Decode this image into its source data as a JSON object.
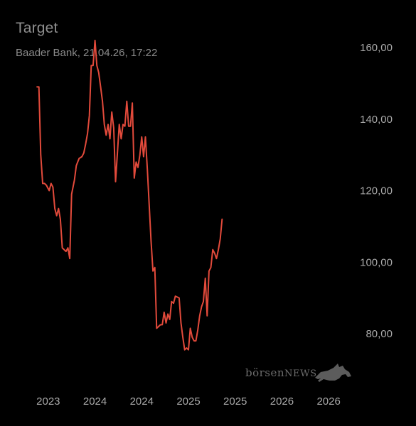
{
  "header": {
    "title": "Target",
    "subtitle": "Baader Bank, 21.04.26, 17:22"
  },
  "logo": {
    "part1": "börsen",
    "part2": "NEWS",
    "icon": "bull-icon"
  },
  "colors": {
    "background": "#000000",
    "line": "#e24a3b",
    "text": "#a9a9a9",
    "logo": "#6d6d6d"
  },
  "chart_data": {
    "type": "line",
    "title": "Target",
    "subtitle": "Baader Bank, 21.04.26, 17:22",
    "xlabel": "",
    "ylabel": "",
    "ylim": [
      72,
      168
    ],
    "xlim": [
      2022.95,
      2026.45
    ],
    "y_axis_position": "right",
    "grid": false,
    "legend": "none",
    "y_ticks": [
      80,
      100,
      120,
      140,
      160
    ],
    "y_tick_labels": [
      "80,00",
      "100,00",
      "120,00",
      "140,00",
      "160,00"
    ],
    "x_ticks": [
      2023.2,
      2023.7,
      2024.2,
      2024.7,
      2025.2,
      2025.7,
      2026.2
    ],
    "x_tick_labels": [
      "2023",
      "2024",
      "2024",
      "2025",
      "2025",
      "2026",
      "2026"
    ],
    "series": [
      {
        "values": [
          [
            2023.08,
            149
          ],
          [
            2023.1,
            149
          ],
          [
            2023.12,
            130
          ],
          [
            2023.14,
            122
          ],
          [
            2023.16,
            122
          ],
          [
            2023.18,
            121.5
          ],
          [
            2023.21,
            120
          ],
          [
            2023.23,
            122
          ],
          [
            2023.25,
            121
          ],
          [
            2023.27,
            115
          ],
          [
            2023.29,
            113
          ],
          [
            2023.31,
            115
          ],
          [
            2023.33,
            112
          ],
          [
            2023.35,
            104
          ],
          [
            2023.37,
            103.5
          ],
          [
            2023.39,
            103
          ],
          [
            2023.41,
            104
          ],
          [
            2023.43,
            101
          ],
          [
            2023.45,
            119
          ],
          [
            2023.48,
            123
          ],
          [
            2023.5,
            127
          ],
          [
            2023.53,
            129
          ],
          [
            2023.56,
            129.5
          ],
          [
            2023.58,
            130.5
          ],
          [
            2023.6,
            133
          ],
          [
            2023.62,
            136
          ],
          [
            2023.64,
            141
          ],
          [
            2023.66,
            155
          ],
          [
            2023.68,
            155
          ],
          [
            2023.7,
            162
          ],
          [
            2023.72,
            155
          ],
          [
            2023.74,
            153
          ],
          [
            2023.76,
            149
          ],
          [
            2023.78,
            145
          ],
          [
            2023.8,
            138.5
          ],
          [
            2023.82,
            135.5
          ],
          [
            2023.84,
            138.5
          ],
          [
            2023.86,
            134.5
          ],
          [
            2023.88,
            142
          ],
          [
            2023.9,
            137.5
          ],
          [
            2023.92,
            122.5
          ],
          [
            2023.94,
            130.5
          ],
          [
            2023.96,
            138.5
          ],
          [
            2023.98,
            134.5
          ],
          [
            2024.0,
            138.5
          ],
          [
            2024.02,
            138
          ],
          [
            2024.04,
            145
          ],
          [
            2024.06,
            138
          ],
          [
            2024.08,
            138
          ],
          [
            2024.1,
            144.5
          ],
          [
            2024.12,
            123.5
          ],
          [
            2024.14,
            128
          ],
          [
            2024.16,
            126.5
          ],
          [
            2024.18,
            130
          ],
          [
            2024.2,
            135
          ],
          [
            2024.22,
            129.5
          ],
          [
            2024.24,
            135
          ],
          [
            2024.26,
            126
          ],
          [
            2024.28,
            116
          ],
          [
            2024.3,
            106
          ],
          [
            2024.32,
            97.5
          ],
          [
            2024.34,
            98.5
          ],
          [
            2024.36,
            81.5
          ],
          [
            2024.38,
            82
          ],
          [
            2024.4,
            82.5
          ],
          [
            2024.42,
            82.5
          ],
          [
            2024.44,
            86
          ],
          [
            2024.46,
            83
          ],
          [
            2024.48,
            85.5
          ],
          [
            2024.5,
            84
          ],
          [
            2024.52,
            89
          ],
          [
            2024.54,
            88.5
          ],
          [
            2024.56,
            90.5
          ],
          [
            2024.6,
            90
          ],
          [
            2024.62,
            83
          ],
          [
            2024.64,
            79
          ],
          [
            2024.66,
            75.5
          ],
          [
            2024.68,
            76
          ],
          [
            2024.7,
            75.5
          ],
          [
            2024.72,
            81.5
          ],
          [
            2024.74,
            79
          ],
          [
            2024.76,
            78
          ],
          [
            2024.78,
            78
          ],
          [
            2024.8,
            81
          ],
          [
            2024.82,
            85
          ],
          [
            2024.84,
            87.5
          ],
          [
            2024.86,
            89
          ],
          [
            2024.88,
            95.5
          ],
          [
            2024.9,
            85
          ],
          [
            2024.92,
            97.5
          ],
          [
            2024.94,
            98.5
          ],
          [
            2024.96,
            103.5
          ],
          [
            2024.98,
            102.5
          ],
          [
            2025.0,
            101
          ],
          [
            2025.02,
            103.5
          ],
          [
            2025.04,
            106.5
          ],
          [
            2025.06,
            112
          ]
        ]
      }
    ]
  }
}
